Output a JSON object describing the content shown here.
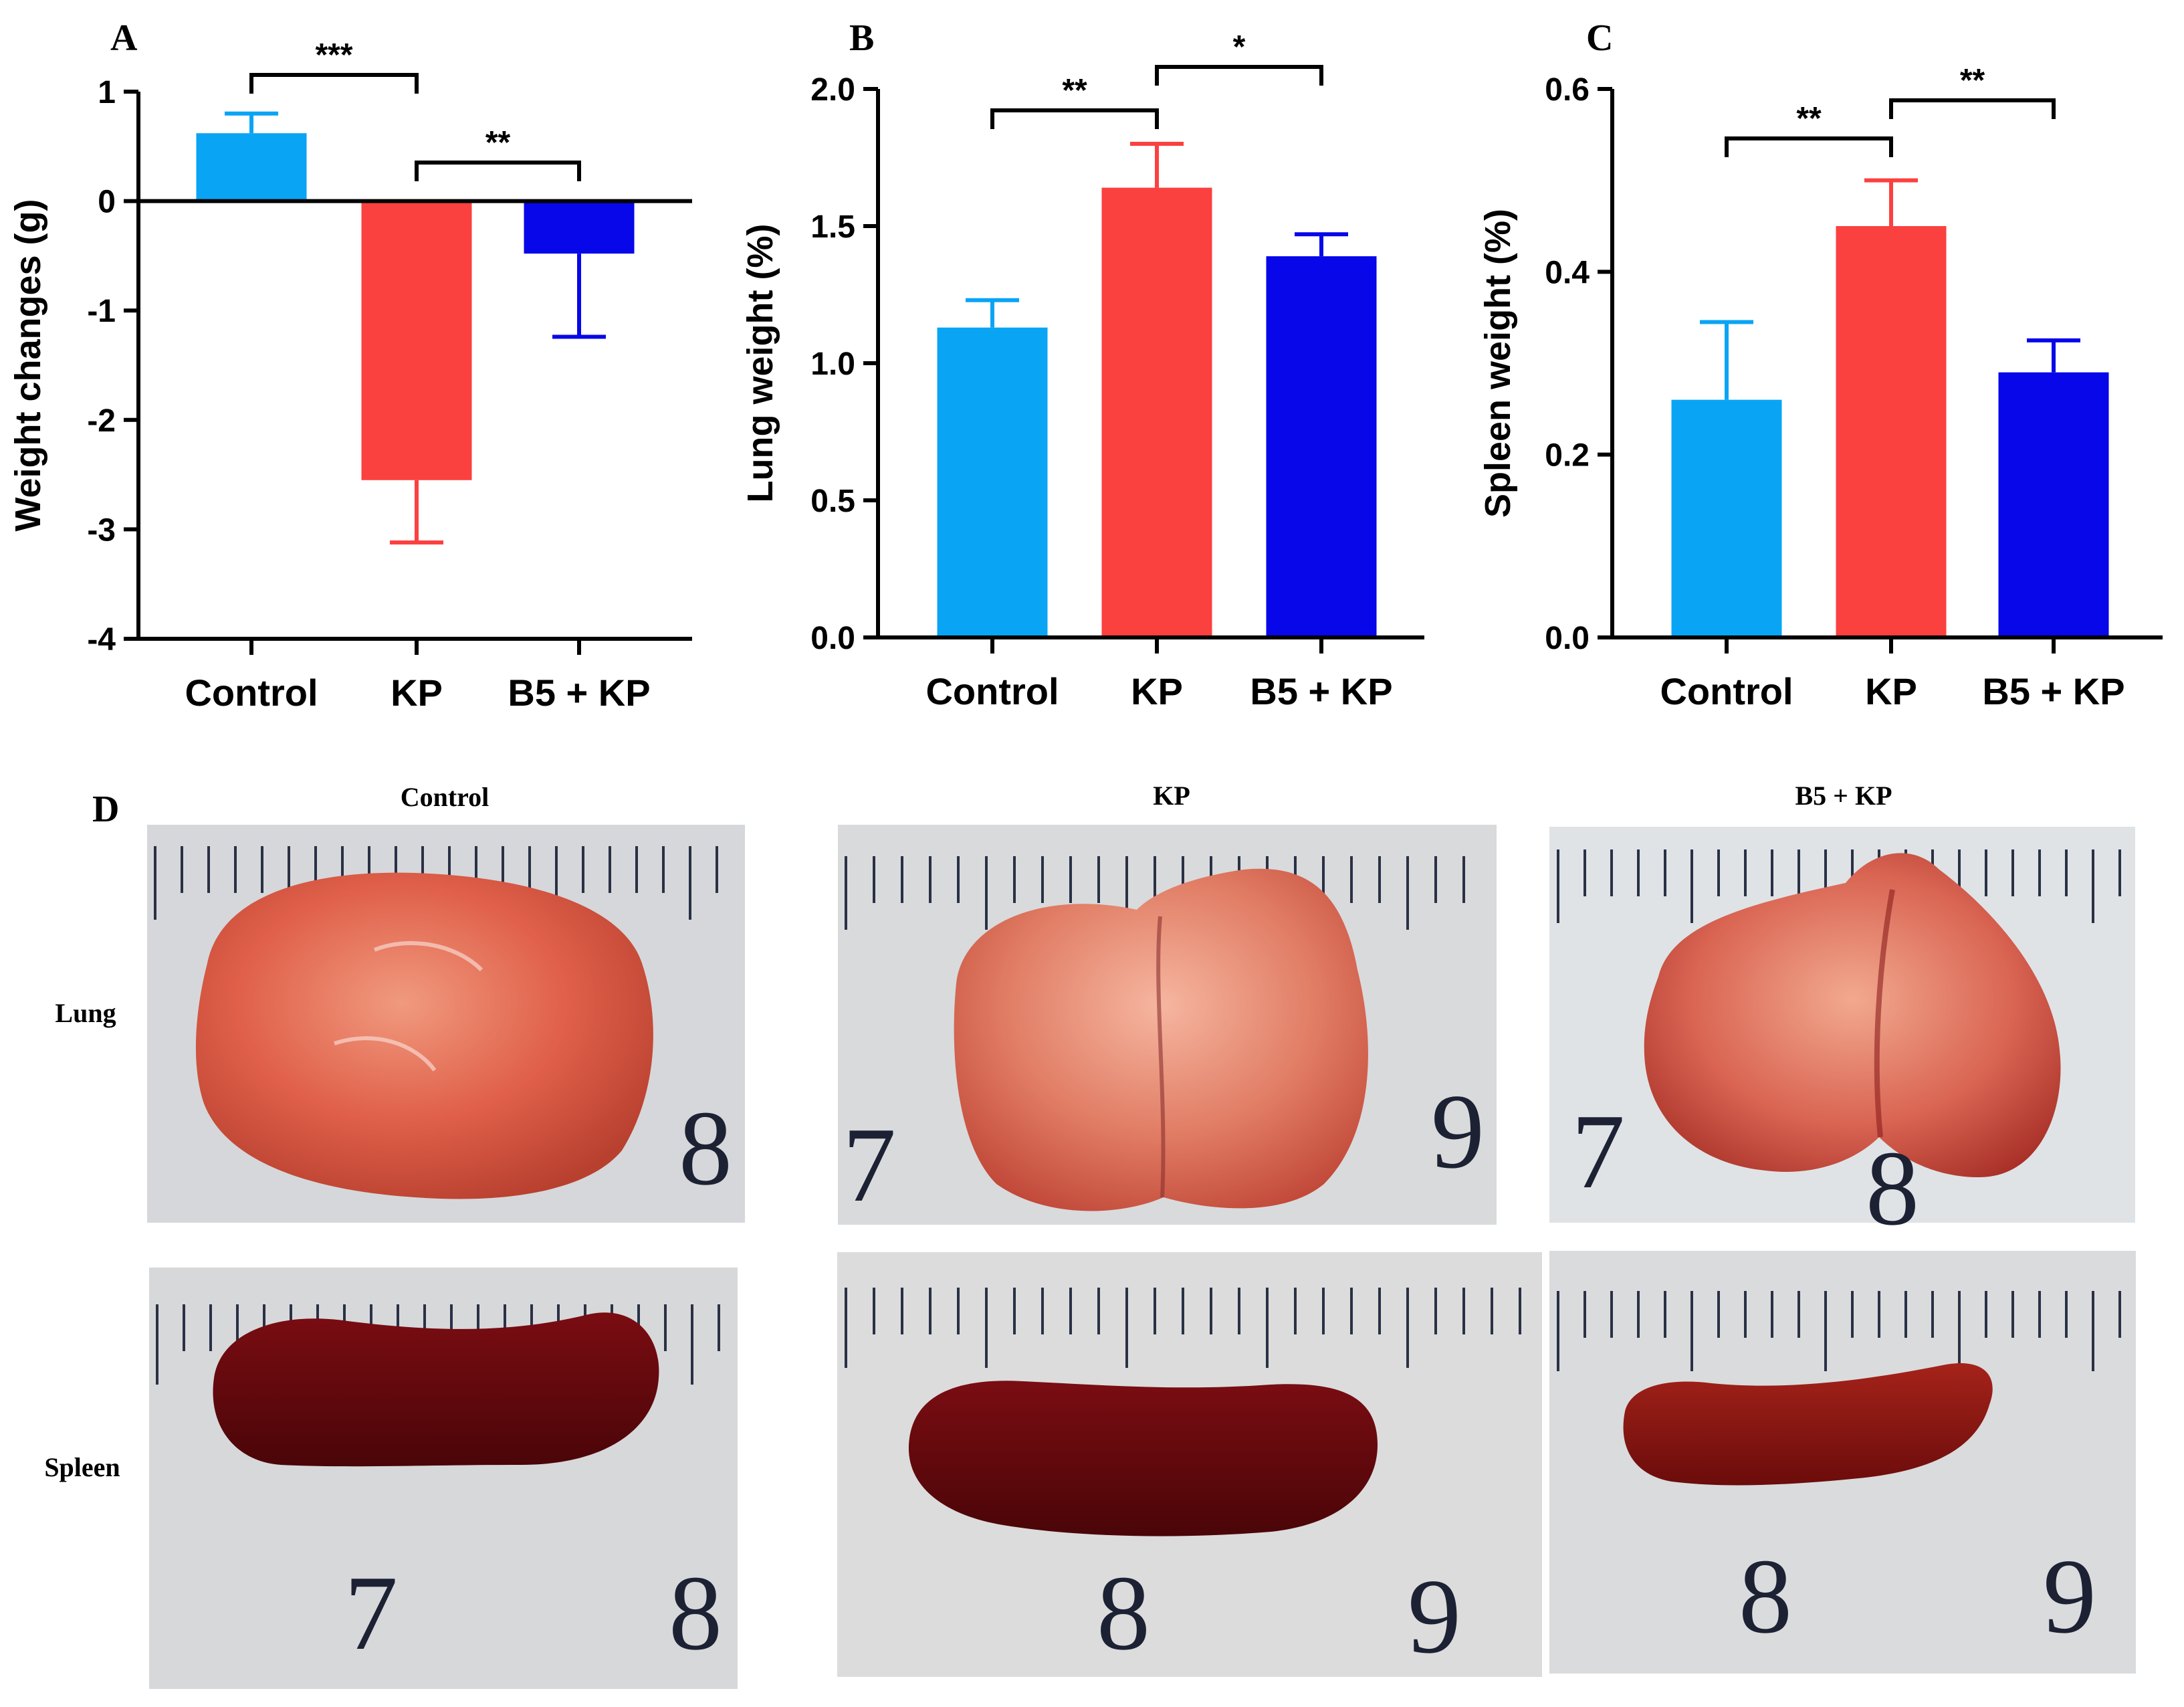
{
  "colors": {
    "control": "#0aa4f5",
    "kp": "#fb4040",
    "b5kp": "#0707e9",
    "axis": "#000000"
  },
  "chart_data": [
    {
      "panel": "A",
      "type": "bar",
      "ylabel": "Weight changes (g)",
      "categories": [
        "Control",
        "KP",
        "B5 + KP"
      ],
      "values": [
        0.62,
        -2.55,
        -0.48
      ],
      "errors": [
        0.18,
        0.57,
        0.76
      ],
      "ylim": [
        -4,
        1
      ],
      "yticks": [
        1,
        0,
        -1,
        -2,
        -3,
        -4
      ],
      "ytick_labels": [
        "1",
        "0",
        "-1",
        "-2",
        "-3",
        "-4"
      ],
      "significance": [
        {
          "from": 0,
          "to": 1,
          "label": "***"
        },
        {
          "from": 1,
          "to": 2,
          "label": "**"
        }
      ]
    },
    {
      "panel": "B",
      "type": "bar",
      "ylabel": "Lung weight (%)",
      "categories": [
        "Control",
        "KP",
        "B5 + KP"
      ],
      "values": [
        1.13,
        1.64,
        1.39
      ],
      "errors": [
        0.1,
        0.16,
        0.08
      ],
      "ylim": [
        0,
        2.0
      ],
      "yticks": [
        0,
        0.5,
        1.0,
        1.5,
        2.0
      ],
      "ytick_labels": [
        "0.0",
        "0.5",
        "1.0",
        "1.5",
        "2.0"
      ],
      "significance": [
        {
          "from": 0,
          "to": 1,
          "label": "**"
        },
        {
          "from": 1,
          "to": 2,
          "label": "*"
        }
      ]
    },
    {
      "panel": "C",
      "type": "bar",
      "ylabel": "Spleen weight (%)",
      "categories": [
        "Control",
        "KP",
        "B5 + KP"
      ],
      "values": [
        0.26,
        0.45,
        0.29
      ],
      "errors": [
        0.085,
        0.05,
        0.035
      ],
      "ylim": [
        0,
        0.6
      ],
      "yticks": [
        0,
        0.2,
        0.4,
        0.6
      ],
      "ytick_labels": [
        "0.0",
        "0.2",
        "0.4",
        "0.6"
      ],
      "significance": [
        {
          "from": 0,
          "to": 1,
          "label": "**"
        },
        {
          "from": 1,
          "to": 2,
          "label": "**"
        }
      ]
    }
  ],
  "photos": {
    "panel": "D",
    "columns": [
      "Control",
      "KP",
      "B5 + KP"
    ],
    "rows": [
      "Lung",
      "Spleen"
    ],
    "ruler_numbers": [
      [
        "8",
        "7",
        "9",
        "7",
        "8"
      ],
      [
        "7",
        "8",
        "8",
        "9",
        "8",
        "9"
      ]
    ]
  }
}
